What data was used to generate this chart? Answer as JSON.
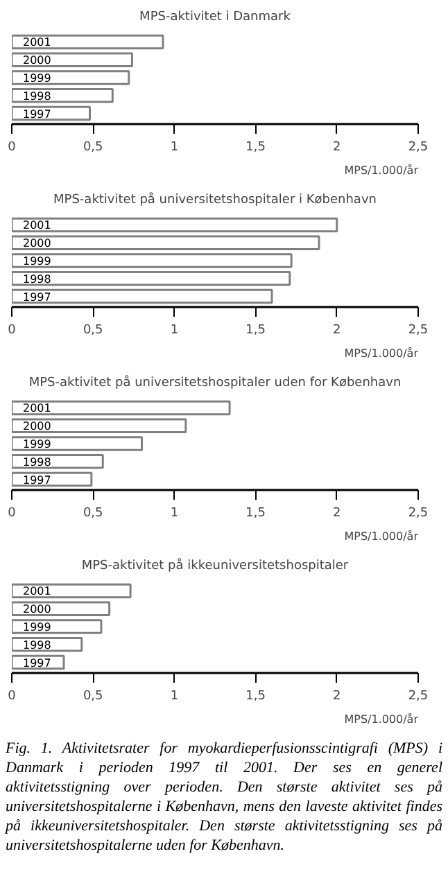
{
  "chart_data": [
    {
      "type": "bar",
      "orientation": "horizontal",
      "title": "MPS-aktivitet i Danmark",
      "categories": [
        "2001",
        "2000",
        "1999",
        "1998",
        "1997"
      ],
      "values": [
        0.93,
        0.74,
        0.72,
        0.62,
        0.48
      ],
      "color": "#ffffff",
      "xlim": [
        0,
        2.5
      ],
      "xticks": [
        0,
        {
          "value": 0.5,
          "label": "0,5"
        },
        1,
        {
          "value": 1.5,
          "label": "1,5"
        },
        2,
        {
          "value": 2.5,
          "label": "2,5"
        }
      ],
      "xlabel": "MPS/1.000/år"
    },
    {
      "type": "bar",
      "orientation": "horizontal",
      "title": "MPS-aktivitet på universitetshospitaler i København",
      "categories": [
        "2001",
        "2000",
        "1999",
        "1998",
        "1997"
      ],
      "values": [
        2.0,
        1.89,
        1.72,
        1.71,
        1.6
      ],
      "color": "#ffffff",
      "xlim": [
        0,
        2.5
      ],
      "xticks": [
        0,
        {
          "value": 0.5,
          "label": "0,5"
        },
        1,
        {
          "value": 1.5,
          "label": "1,5"
        },
        2,
        {
          "value": 2.5,
          "label": "2,5"
        }
      ],
      "xlabel": "MPS/1.000/år"
    },
    {
      "type": "bar",
      "orientation": "horizontal",
      "title": "MPS-aktivitet på universitetshospitaler uden for København",
      "categories": [
        "2001",
        "2000",
        "1999",
        "1998",
        "1997"
      ],
      "values": [
        1.34,
        1.07,
        0.8,
        0.56,
        0.49
      ],
      "color": "#ffffff",
      "xlim": [
        0,
        2.5
      ],
      "xticks": [
        0,
        {
          "value": 0.5,
          "label": "0,5"
        },
        1,
        {
          "value": 1.5,
          "label": "1,5"
        },
        2,
        {
          "value": 2.5,
          "label": "2,5"
        }
      ],
      "xlabel": "MPS/1.000/år"
    },
    {
      "type": "bar",
      "orientation": "horizontal",
      "title": "MPS-aktivitet på ikkeuniversitetshospitaler",
      "categories": [
        "2001",
        "2000",
        "1999",
        "1998",
        "1997"
      ],
      "values": [
        0.73,
        0.6,
        0.55,
        0.43,
        0.32
      ],
      "color": "#ffffff",
      "xlim": [
        0,
        2.5
      ],
      "xticks": [
        0,
        {
          "value": 0.5,
          "label": "0,5"
        },
        1,
        {
          "value": 1.5,
          "label": "1,5"
        },
        2,
        {
          "value": 2.5,
          "label": "2,5"
        }
      ],
      "xlabel": "MPS/1.000/år",
      "annotations": [
        "Fig. 1. Aktivitetsrater for myokardieperfusionsscintigrafi (MPS) i Danmark i perioden 1997 til 2001. Der ses en generel aktivitetsstigning over perioden. Den største aktivitet ses på universitetshospitalerne i København, mens den laveste aktivitet findes på ikkeuniversitetshospitaler. Den største aktivitetsstigning ses på universitetshospitalerne uden for København."
      ]
    }
  ]
}
